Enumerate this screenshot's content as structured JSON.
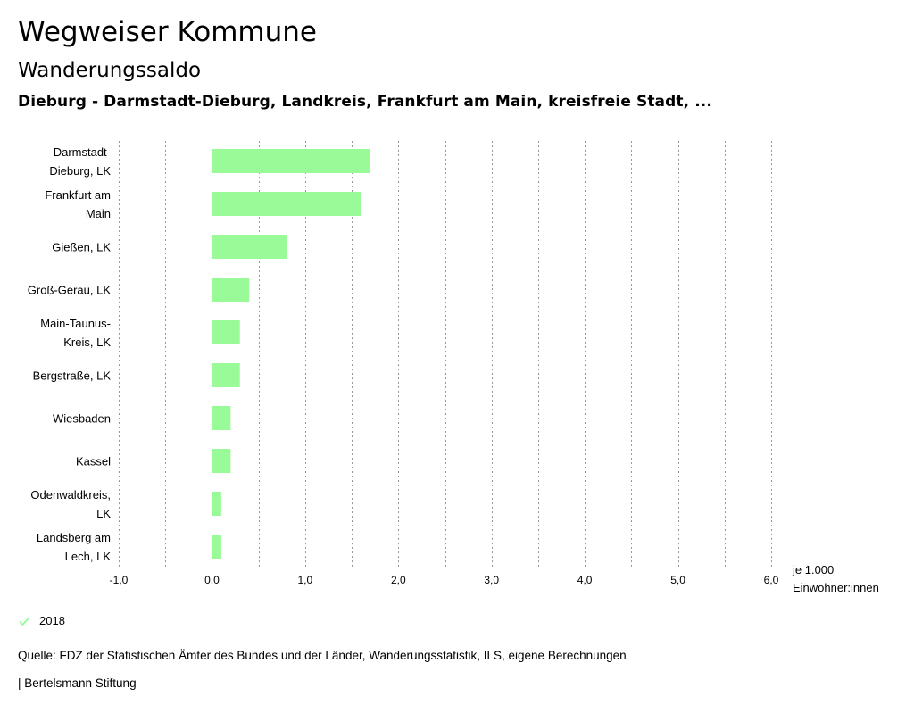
{
  "header": {
    "title": "Wegweiser Kommune",
    "subtitle": "Wanderungssaldo",
    "region": "Dieburg - Darmstadt-Dieburg, Landkreis, Frankfurt am Main, kreisfreie Stadt, ..."
  },
  "chart_data": {
    "type": "bar",
    "orientation": "horizontal",
    "categories": [
      [
        "Darmstadt-",
        "Dieburg, LK"
      ],
      [
        "Frankfurt am",
        "Main"
      ],
      [
        "Gießen, LK"
      ],
      [
        "Groß-Gerau, LK"
      ],
      [
        "Main-Taunus-",
        "Kreis, LK"
      ],
      [
        "Bergstraße, LK"
      ],
      [
        "Wiesbaden"
      ],
      [
        "Kassel"
      ],
      [
        "Odenwaldkreis,",
        "LK"
      ],
      [
        "Landsberg am",
        "Lech, LK"
      ]
    ],
    "series": [
      {
        "name": "2018",
        "values": [
          1.7,
          1.6,
          0.8,
          0.4,
          0.3,
          0.3,
          0.2,
          0.2,
          0.1,
          0.1
        ]
      }
    ],
    "xlim": [
      -1.0,
      6.0
    ],
    "ticks": [
      -1.0,
      0.0,
      1.0,
      2.0,
      3.0,
      4.0,
      5.0,
      6.0
    ],
    "tick_labels": [
      "-1,0",
      "0,0",
      "1,0",
      "2,0",
      "3,0",
      "4,0",
      "5,0",
      "6,0"
    ],
    "unit_label": [
      "je 1.000",
      "Einwohner:innen"
    ],
    "grid": true,
    "bar_color": "#98fb98"
  },
  "legend": {
    "label": "2018",
    "color": "#98fb98"
  },
  "source": "Quelle: FDZ der Statistischen Ämter des Bundes und der Länder, Wanderungsstatistik, ILS, eigene Berechnungen",
  "footer": "| Bertelsmann Stiftung"
}
